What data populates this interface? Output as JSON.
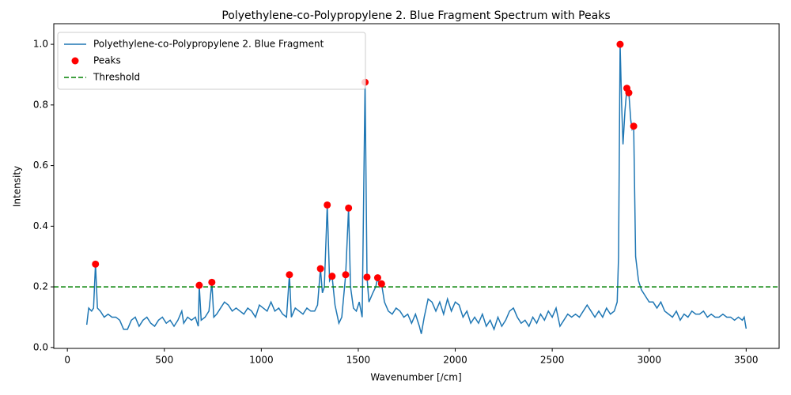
{
  "chart_data": {
    "type": "line",
    "title": "Polyethylene-co-Polypropylene 2. Blue Fragment Spectrum with Peaks",
    "x_label": "Wavenumber [/cm]",
    "y_label": "Intensity",
    "xlim": [
      -70,
      3670
    ],
    "ylim": [
      -0.003,
      1.068
    ],
    "xticks": [
      0,
      500,
      1000,
      1500,
      2000,
      2500,
      3000,
      3500
    ],
    "yticks": [
      {
        "value": 0,
        "label": "0.0"
      },
      0.2,
      0.4,
      0.6,
      0.8,
      {
        "value": 1,
        "label": "1.0"
      }
    ],
    "legend": "upper left",
    "series": [
      {
        "name": "Polyethylene-co-Polypropylene 2. Blue Fragment",
        "type": "line",
        "color": "#1f77b4",
        "x": [
          100,
          110,
          125,
          135,
          145,
          155,
          170,
          190,
          210,
          230,
          250,
          270,
          290,
          310,
          330,
          350,
          370,
          390,
          410,
          430,
          450,
          470,
          490,
          510,
          530,
          550,
          570,
          590,
          600,
          620,
          640,
          660,
          675,
          680,
          690,
          710,
          730,
          745,
          755,
          770,
          790,
          810,
          830,
          850,
          870,
          890,
          910,
          930,
          950,
          970,
          990,
          1010,
          1030,
          1050,
          1070,
          1090,
          1110,
          1130,
          1145,
          1155,
          1175,
          1195,
          1215,
          1235,
          1255,
          1275,
          1290,
          1305,
          1315,
          1325,
          1340,
          1352,
          1365,
          1380,
          1400,
          1415,
          1425,
          1435,
          1450,
          1460,
          1475,
          1490,
          1505,
          1520,
          1535,
          1545,
          1555,
          1575,
          1590,
          1600,
          1610,
          1620,
          1635,
          1655,
          1675,
          1695,
          1715,
          1735,
          1755,
          1775,
          1795,
          1815,
          1825,
          1840,
          1860,
          1880,
          1900,
          1920,
          1940,
          1960,
          1980,
          2000,
          2020,
          2040,
          2060,
          2080,
          2100,
          2120,
          2140,
          2160,
          2180,
          2200,
          2220,
          2240,
          2260,
          2280,
          2300,
          2320,
          2340,
          2360,
          2380,
          2400,
          2420,
          2440,
          2460,
          2480,
          2500,
          2520,
          2540,
          2560,
          2580,
          2600,
          2620,
          2640,
          2660,
          2680,
          2700,
          2720,
          2740,
          2760,
          2780,
          2800,
          2820,
          2835,
          2842,
          2850,
          2858,
          2865,
          2875,
          2885,
          2895,
          2905,
          2912,
          2920,
          2930,
          2945,
          2960,
          2980,
          3000,
          3020,
          3040,
          3060,
          3080,
          3100,
          3120,
          3140,
          3160,
          3180,
          3200,
          3220,
          3240,
          3260,
          3280,
          3300,
          3320,
          3340,
          3360,
          3380,
          3400,
          3420,
          3440,
          3460,
          3480,
          3490,
          3500
        ],
        "values": [
          0.075,
          0.13,
          0.12,
          0.13,
          0.275,
          0.13,
          0.12,
          0.1,
          0.11,
          0.1,
          0.1,
          0.09,
          0.06,
          0.06,
          0.09,
          0.1,
          0.07,
          0.09,
          0.1,
          0.08,
          0.07,
          0.09,
          0.1,
          0.08,
          0.09,
          0.07,
          0.09,
          0.12,
          0.08,
          0.1,
          0.09,
          0.1,
          0.07,
          0.205,
          0.09,
          0.1,
          0.12,
          0.215,
          0.1,
          0.11,
          0.13,
          0.15,
          0.14,
          0.12,
          0.13,
          0.12,
          0.11,
          0.13,
          0.12,
          0.1,
          0.14,
          0.13,
          0.12,
          0.15,
          0.12,
          0.13,
          0.11,
          0.1,
          0.24,
          0.1,
          0.13,
          0.12,
          0.11,
          0.13,
          0.12,
          0.12,
          0.14,
          0.26,
          0.18,
          0.2,
          0.47,
          0.22,
          0.235,
          0.14,
          0.08,
          0.1,
          0.17,
          0.24,
          0.46,
          0.2,
          0.13,
          0.12,
          0.15,
          0.1,
          0.875,
          0.232,
          0.15,
          0.18,
          0.2,
          0.23,
          0.2,
          0.21,
          0.15,
          0.12,
          0.11,
          0.13,
          0.12,
          0.1,
          0.11,
          0.08,
          0.11,
          0.07,
          0.045,
          0.1,
          0.16,
          0.15,
          0.12,
          0.15,
          0.11,
          0.16,
          0.12,
          0.15,
          0.14,
          0.1,
          0.12,
          0.08,
          0.1,
          0.08,
          0.11,
          0.07,
          0.09,
          0.06,
          0.1,
          0.07,
          0.09,
          0.12,
          0.13,
          0.1,
          0.08,
          0.09,
          0.07,
          0.1,
          0.08,
          0.11,
          0.09,
          0.12,
          0.1,
          0.13,
          0.07,
          0.09,
          0.11,
          0.1,
          0.11,
          0.1,
          0.12,
          0.14,
          0.12,
          0.1,
          0.12,
          0.1,
          0.13,
          0.11,
          0.12,
          0.15,
          0.3,
          1.0,
          0.8,
          0.67,
          0.78,
          0.855,
          0.84,
          0.75,
          0.72,
          0.73,
          0.3,
          0.22,
          0.19,
          0.17,
          0.15,
          0.15,
          0.13,
          0.15,
          0.12,
          0.11,
          0.1,
          0.12,
          0.09,
          0.11,
          0.1,
          0.12,
          0.11,
          0.11,
          0.12,
          0.1,
          0.11,
          0.1,
          0.1,
          0.11,
          0.1,
          0.1,
          0.09,
          0.1,
          0.09,
          0.1,
          0.062
        ]
      },
      {
        "name": "Peaks",
        "type": "scatter",
        "color": "#ff0000",
        "x": [
          145,
          680,
          745,
          1145,
          1305,
          1340,
          1365,
          1435,
          1450,
          1535,
          1545,
          1600,
          1620,
          2850,
          2885,
          2895,
          2920
        ],
        "values": [
          0.275,
          0.205,
          0.215,
          0.24,
          0.26,
          0.47,
          0.235,
          0.24,
          0.46,
          0.875,
          0.232,
          0.23,
          0.21,
          1.0,
          0.855,
          0.84,
          0.73
        ]
      }
    ],
    "threshold": {
      "name": "Threshold",
      "value": 0.2,
      "color": "#008000"
    }
  }
}
